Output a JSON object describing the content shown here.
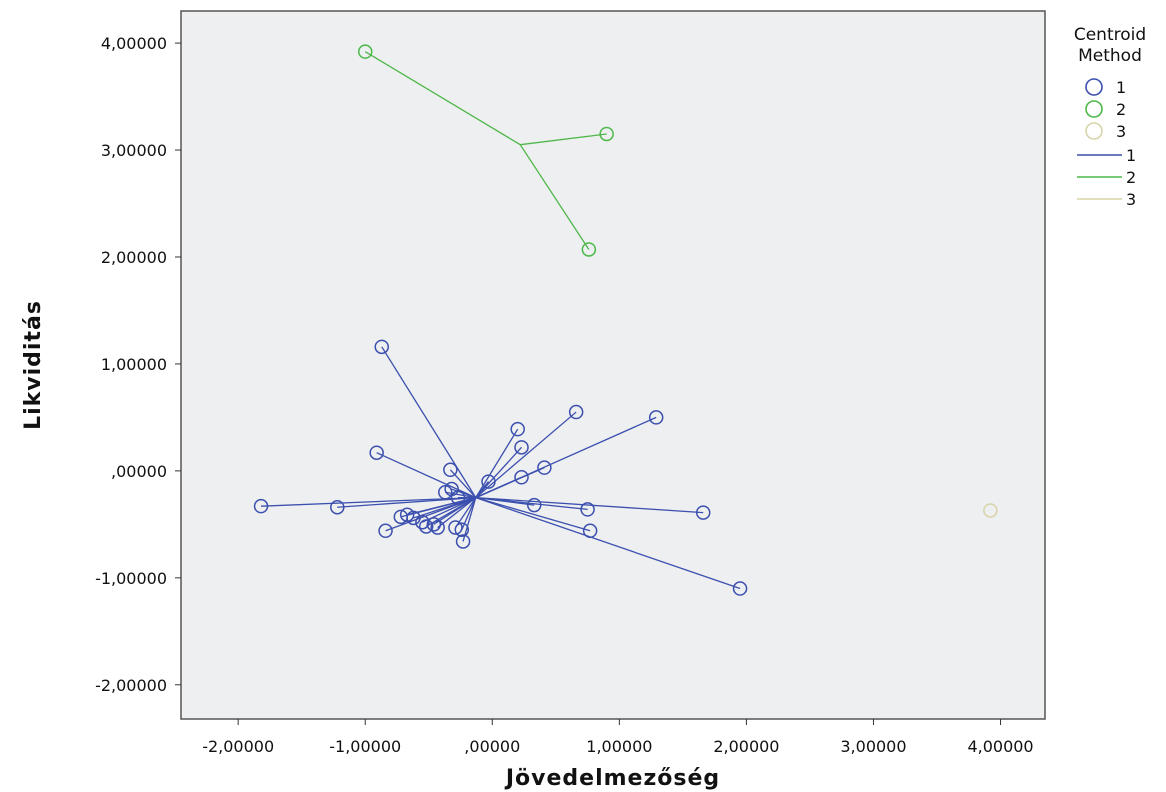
{
  "chart_data": {
    "type": "scatter",
    "xlabel": "Jövedelmezőség",
    "ylabel": "Likviditás",
    "xlim": [
      -2.45,
      4.35
    ],
    "ylim": [
      -2.32,
      4.3
    ],
    "x_ticks": [
      -2,
      -1,
      0,
      1,
      2,
      3,
      4
    ],
    "x_tick_labels": [
      "-2,00000",
      "-1,00000",
      ",00000",
      "1,00000",
      "2,00000",
      "3,00000",
      "4,00000"
    ],
    "y_ticks": [
      -2,
      -1,
      0,
      1,
      2,
      3,
      4
    ],
    "y_tick_labels": [
      "-2,00000",
      "-1,00000",
      ",00000",
      "1,00000",
      "2,00000",
      "3,00000",
      "4,00000"
    ],
    "grid": false,
    "background": "#eeeff1",
    "legend": {
      "title_lines": [
        "Centroid",
        "Method"
      ],
      "position": "right",
      "marker_labels": [
        "1",
        "2",
        "3"
      ],
      "line_labels": [
        "1",
        "2",
        "3"
      ]
    },
    "series": [
      {
        "name": "1",
        "color": "#3b4fae",
        "centroid": [
          -0.13,
          -0.25
        ],
        "points": [
          [
            -1.82,
            -0.33
          ],
          [
            -1.22,
            -0.34
          ],
          [
            -0.87,
            1.16
          ],
          [
            -0.91,
            0.17
          ],
          [
            -0.84,
            -0.56
          ],
          [
            -0.72,
            -0.43
          ],
          [
            -0.67,
            -0.41
          ],
          [
            -0.62,
            -0.44
          ],
          [
            -0.55,
            -0.48
          ],
          [
            -0.52,
            -0.52
          ],
          [
            -0.46,
            -0.5
          ],
          [
            -0.43,
            -0.53
          ],
          [
            -0.37,
            -0.2
          ],
          [
            -0.33,
            0.01
          ],
          [
            -0.32,
            -0.17
          ],
          [
            -0.29,
            -0.53
          ],
          [
            -0.27,
            -0.25
          ],
          [
            -0.24,
            -0.55
          ],
          [
            -0.23,
            -0.66
          ],
          [
            -0.03,
            -0.1
          ],
          [
            0.2,
            0.39
          ],
          [
            0.23,
            0.22
          ],
          [
            0.23,
            -0.06
          ],
          [
            0.33,
            -0.32
          ],
          [
            0.41,
            0.03
          ],
          [
            0.66,
            0.55
          ],
          [
            0.75,
            -0.36
          ],
          [
            0.77,
            -0.56
          ],
          [
            1.29,
            0.5
          ],
          [
            1.66,
            -0.39
          ],
          [
            1.95,
            -1.1
          ]
        ]
      },
      {
        "name": "2",
        "color": "#4cb848",
        "centroid": [
          0.22,
          3.05
        ],
        "points": [
          [
            -1.0,
            3.92
          ],
          [
            0.9,
            3.15
          ],
          [
            0.76,
            2.07
          ]
        ]
      },
      {
        "name": "3",
        "color": "#d8d3a8",
        "centroid": [
          3.92,
          -0.37
        ],
        "points": [
          [
            3.92,
            -0.37
          ]
        ]
      }
    ]
  }
}
